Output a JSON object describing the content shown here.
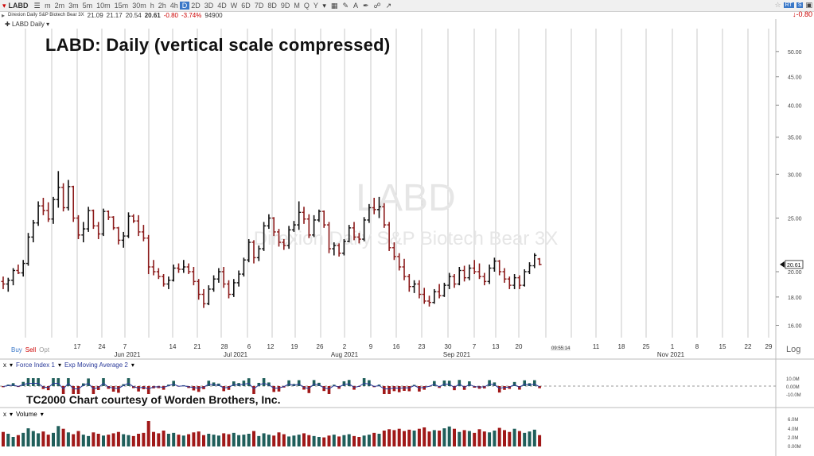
{
  "toolbar": {
    "symbol": "LABD",
    "timeframes": [
      "m",
      "2m",
      "3m",
      "5m",
      "10m",
      "15m",
      "30m",
      "h",
      "2h",
      "4h",
      "D",
      "2D",
      "3D",
      "4D",
      "W",
      "6D",
      "7D",
      "8D",
      "9D",
      "M",
      "Q",
      "Y"
    ],
    "active_timeframe": "D",
    "right_value": "-0.80",
    "rt_label": "RT",
    "s_label": "S"
  },
  "quote": {
    "name": "Direxion Daily S&P Biotech Bear 3X",
    "open": "21.09",
    "high": "21.17",
    "low": "20.54",
    "last": "20.61",
    "change": "-0.80",
    "change_pct": "-3.74%",
    "volume": "94900"
  },
  "chart_label": "LABD Daily",
  "big_title": "LABD:  Daily (vertical scale compressed)",
  "watermark": {
    "symbol": "LABD",
    "name": "Direxion Daily S&P Biotech Bear 3X"
  },
  "credit": "TC2000 Chart courtesy of Worden Brothers, Inc.",
  "buy_label": "Buy",
  "sell_label": "Sell",
  "opt_label": "Opt",
  "log_label": "Log",
  "price_tag": "20.61",
  "time_tag": "09:55:14",
  "colors": {
    "up": "#111111",
    "down": "#8b1a1a",
    "vol_up": "#1f5e5a",
    "vol_down": "#a01818",
    "force": "#2a3a9a",
    "ema": "#8b1a1a",
    "active": "#3a78c8"
  },
  "force_panel": {
    "label1": "Force Index 1",
    "label2": "Exp Moving Average 2",
    "ticks": [
      "10.0M",
      "0.00M",
      "-10.0M"
    ]
  },
  "volume_panel": {
    "label": "Volume",
    "ticks": [
      "6.0M",
      "4.0M",
      "2.0M",
      "0.00M"
    ]
  },
  "chart_data": {
    "type": "ohlc",
    "y_scale": "log",
    "ylim": [
      15.2,
      55
    ],
    "y_ticks": [
      "50.00",
      "45.00",
      "40.00",
      "35.00",
      "30.00",
      "25.00",
      "20.00",
      "18.00",
      "16.00"
    ],
    "y_tick_values": [
      50,
      45,
      40,
      35,
      30,
      25,
      20,
      18,
      16
    ],
    "x_tick_labels": [
      "17",
      "24",
      "7",
      "14",
      "21",
      "28",
      "6",
      "12",
      "19",
      "26",
      "2",
      "9",
      "16",
      "23",
      "30",
      "7",
      "13",
      "20",
      "11",
      "18",
      "25",
      "1",
      "8",
      "15",
      "22",
      "29"
    ],
    "month_labels": [
      "Jun 2021",
      "Jul 2021",
      "Aug 2021",
      "Sep 2021",
      "Nov 2021"
    ],
    "bars": [
      [
        19.2,
        19.6,
        18.6,
        19.0
      ],
      [
        19.0,
        19.5,
        18.4,
        19.3
      ],
      [
        19.3,
        20.3,
        18.9,
        20.1
      ],
      [
        20.1,
        20.6,
        19.8,
        19.9
      ],
      [
        19.9,
        21.0,
        19.6,
        20.7
      ],
      [
        20.7,
        23.5,
        20.5,
        23.1
      ],
      [
        23.1,
        24.8,
        22.6,
        24.5
      ],
      [
        24.5,
        26.8,
        24.2,
        26.3
      ],
      [
        26.3,
        27.2,
        25.3,
        25.8
      ],
      [
        25.8,
        26.7,
        24.6,
        24.9
      ],
      [
        24.9,
        27.3,
        24.4,
        27.0
      ],
      [
        27.0,
        30.4,
        26.1,
        28.4
      ],
      [
        28.4,
        28.9,
        25.7,
        26.1
      ],
      [
        26.1,
        29.3,
        25.8,
        28.5
      ],
      [
        28.5,
        28.6,
        24.6,
        25.0
      ],
      [
        25.0,
        25.3,
        22.9,
        23.3
      ],
      [
        23.3,
        24.6,
        22.6,
        23.9
      ],
      [
        23.9,
        26.2,
        23.6,
        25.8
      ],
      [
        25.8,
        25.9,
        23.9,
        24.2
      ],
      [
        24.2,
        24.6,
        22.9,
        23.4
      ],
      [
        23.4,
        26.0,
        23.2,
        25.7
      ],
      [
        25.7,
        25.8,
        24.8,
        25.1
      ],
      [
        25.1,
        25.2,
        23.8,
        24.0
      ],
      [
        24.0,
        24.1,
        22.4,
        22.8
      ],
      [
        22.8,
        23.6,
        22.1,
        23.2
      ],
      [
        23.2,
        25.6,
        23.0,
        25.2
      ],
      [
        25.2,
        25.4,
        24.5,
        24.7
      ],
      [
        24.7,
        25.3,
        23.2,
        23.6
      ],
      [
        23.6,
        24.3,
        22.7,
        23.0
      ],
      [
        23.0,
        23.3,
        19.8,
        20.4
      ],
      [
        20.4,
        21.0,
        19.7,
        20.0
      ],
      [
        20.0,
        20.3,
        19.4,
        19.6
      ],
      [
        19.6,
        19.8,
        18.8,
        19.0
      ],
      [
        19.0,
        19.6,
        18.6,
        19.3
      ],
      [
        19.3,
        20.6,
        19.2,
        20.3
      ],
      [
        20.3,
        20.7,
        19.9,
        20.2
      ],
      [
        20.2,
        21.0,
        19.9,
        20.4
      ],
      [
        20.4,
        20.7,
        19.8,
        20.0
      ],
      [
        20.0,
        20.4,
        18.9,
        19.2
      ],
      [
        19.2,
        19.4,
        17.8,
        18.2
      ],
      [
        18.2,
        18.6,
        17.2,
        17.5
      ],
      [
        17.5,
        18.9,
        17.4,
        18.6
      ],
      [
        18.6,
        19.7,
        18.4,
        19.4
      ],
      [
        19.4,
        20.3,
        19.1,
        20.0
      ],
      [
        20.0,
        20.4,
        18.7,
        19.0
      ],
      [
        19.0,
        19.3,
        17.9,
        18.2
      ],
      [
        18.2,
        19.4,
        18.0,
        19.1
      ],
      [
        19.1,
        20.1,
        18.8,
        19.8
      ],
      [
        19.8,
        21.2,
        19.6,
        21.0
      ],
      [
        21.0,
        22.9,
        20.8,
        22.6
      ],
      [
        22.6,
        22.8,
        20.7,
        21.2
      ],
      [
        21.2,
        22.3,
        20.9,
        22.0
      ],
      [
        22.0,
        24.6,
        21.8,
        24.2
      ],
      [
        24.2,
        25.4,
        23.9,
        25.0
      ],
      [
        25.0,
        25.1,
        23.2,
        23.6
      ],
      [
        23.6,
        23.9,
        22.2,
        22.6
      ],
      [
        22.6,
        22.9,
        21.9,
        22.3
      ],
      [
        22.3,
        24.2,
        22.0,
        23.8
      ],
      [
        23.8,
        24.7,
        23.6,
        24.3
      ],
      [
        24.3,
        26.8,
        23.8,
        25.6
      ],
      [
        25.6,
        26.2,
        24.4,
        24.9
      ],
      [
        24.9,
        25.4,
        23.0,
        23.3
      ],
      [
        23.3,
        25.3,
        23.1,
        24.8
      ],
      [
        24.8,
        25.9,
        24.6,
        25.7
      ],
      [
        25.7,
        25.8,
        24.0,
        24.3
      ],
      [
        24.3,
        24.6,
        21.6,
        22.0
      ],
      [
        22.0,
        22.6,
        21.4,
        22.3
      ],
      [
        22.3,
        22.5,
        21.3,
        21.6
      ],
      [
        21.6,
        22.9,
        21.4,
        22.7
      ],
      [
        22.7,
        24.3,
        22.6,
        24.0
      ],
      [
        24.0,
        24.6,
        22.8,
        23.1
      ],
      [
        23.1,
        23.5,
        22.5,
        22.9
      ],
      [
        22.9,
        25.1,
        22.7,
        24.8
      ],
      [
        24.8,
        26.5,
        24.5,
        26.1
      ],
      [
        26.1,
        27.2,
        25.4,
        25.9
      ],
      [
        25.9,
        27.3,
        25.0,
        26.2
      ],
      [
        26.2,
        26.6,
        24.0,
        24.3
      ],
      [
        24.3,
        24.6,
        21.8,
        22.1
      ],
      [
        22.1,
        22.6,
        21.0,
        21.3
      ],
      [
        21.3,
        21.6,
        20.1,
        20.4
      ],
      [
        20.4,
        21.1,
        19.3,
        19.6
      ],
      [
        19.6,
        19.8,
        18.4,
        18.8
      ],
      [
        18.8,
        19.3,
        18.3,
        19.0
      ],
      [
        19.0,
        19.3,
        17.9,
        18.2
      ],
      [
        18.2,
        18.7,
        17.5,
        17.7
      ],
      [
        17.7,
        18.1,
        17.3,
        17.6
      ],
      [
        17.6,
        18.6,
        17.5,
        18.4
      ],
      [
        18.4,
        19.0,
        17.9,
        18.1
      ],
      [
        18.1,
        19.1,
        18.0,
        18.9
      ],
      [
        18.9,
        19.9,
        18.6,
        19.6
      ],
      [
        19.6,
        19.8,
        18.7,
        19.0
      ],
      [
        19.0,
        20.4,
        18.9,
        20.1
      ],
      [
        20.1,
        20.5,
        19.2,
        19.5
      ],
      [
        19.5,
        20.6,
        19.3,
        20.3
      ],
      [
        20.3,
        21.0,
        19.8,
        20.0
      ],
      [
        20.0,
        20.7,
        19.4,
        19.6
      ],
      [
        19.6,
        19.9,
        18.9,
        19.2
      ],
      [
        19.2,
        20.6,
        19.0,
        20.3
      ],
      [
        20.3,
        21.2,
        20.0,
        20.9
      ],
      [
        20.9,
        21.0,
        19.7,
        20.0
      ],
      [
        20.0,
        20.3,
        19.1,
        19.4
      ],
      [
        19.4,
        19.6,
        18.6,
        18.9
      ],
      [
        18.9,
        19.8,
        18.6,
        19.5
      ],
      [
        19.5,
        19.7,
        18.6,
        18.9
      ],
      [
        18.9,
        20.2,
        18.8,
        20.0
      ],
      [
        20.0,
        20.8,
        19.8,
        20.5
      ],
      [
        20.5,
        21.6,
        20.3,
        21.41
      ],
      [
        21.09,
        21.17,
        20.54,
        20.61
      ]
    ],
    "volume": [
      3.2,
      2.8,
      2.1,
      2.5,
      3.0,
      4.0,
      3.4,
      2.9,
      3.3,
      2.6,
      3.0,
      4.5,
      3.9,
      3.1,
      2.7,
      3.4,
      2.6,
      2.3,
      3.1,
      2.8,
      2.4,
      2.6,
      2.9,
      3.2,
      2.7,
      2.5,
      2.3,
      2.8,
      3.0,
      5.6,
      3.2,
      2.9,
      3.5,
      2.8,
      3.0,
      2.6,
      2.4,
      2.7,
      3.1,
      3.3,
      2.5,
      2.8,
      2.6,
      2.4,
      2.9,
      2.7,
      3.0,
      2.5,
      2.6,
      2.8,
      3.4,
      2.3,
      2.9,
      2.6,
      2.4,
      3.1,
      2.7,
      2.2,
      2.4,
      2.6,
      2.9,
      2.5,
      2.3,
      2.1,
      2.0,
      2.4,
      2.6,
      2.2,
      2.5,
      2.7,
      2.3,
      2.1,
      2.4,
      2.6,
      3.0,
      2.8,
      3.5,
      3.8,
      3.6,
      3.9,
      3.4,
      3.7,
      3.5,
      3.9,
      4.2,
      3.3,
      3.6,
      3.5,
      4.0,
      4.4,
      3.9,
      3.2,
      3.6,
      3.4,
      3.0,
      3.8,
      3.3,
      3.1,
      3.5,
      4.1,
      3.6,
      3.2,
      3.9,
      3.4,
      3.0,
      3.3,
      3.7,
      2.5
    ]
  }
}
